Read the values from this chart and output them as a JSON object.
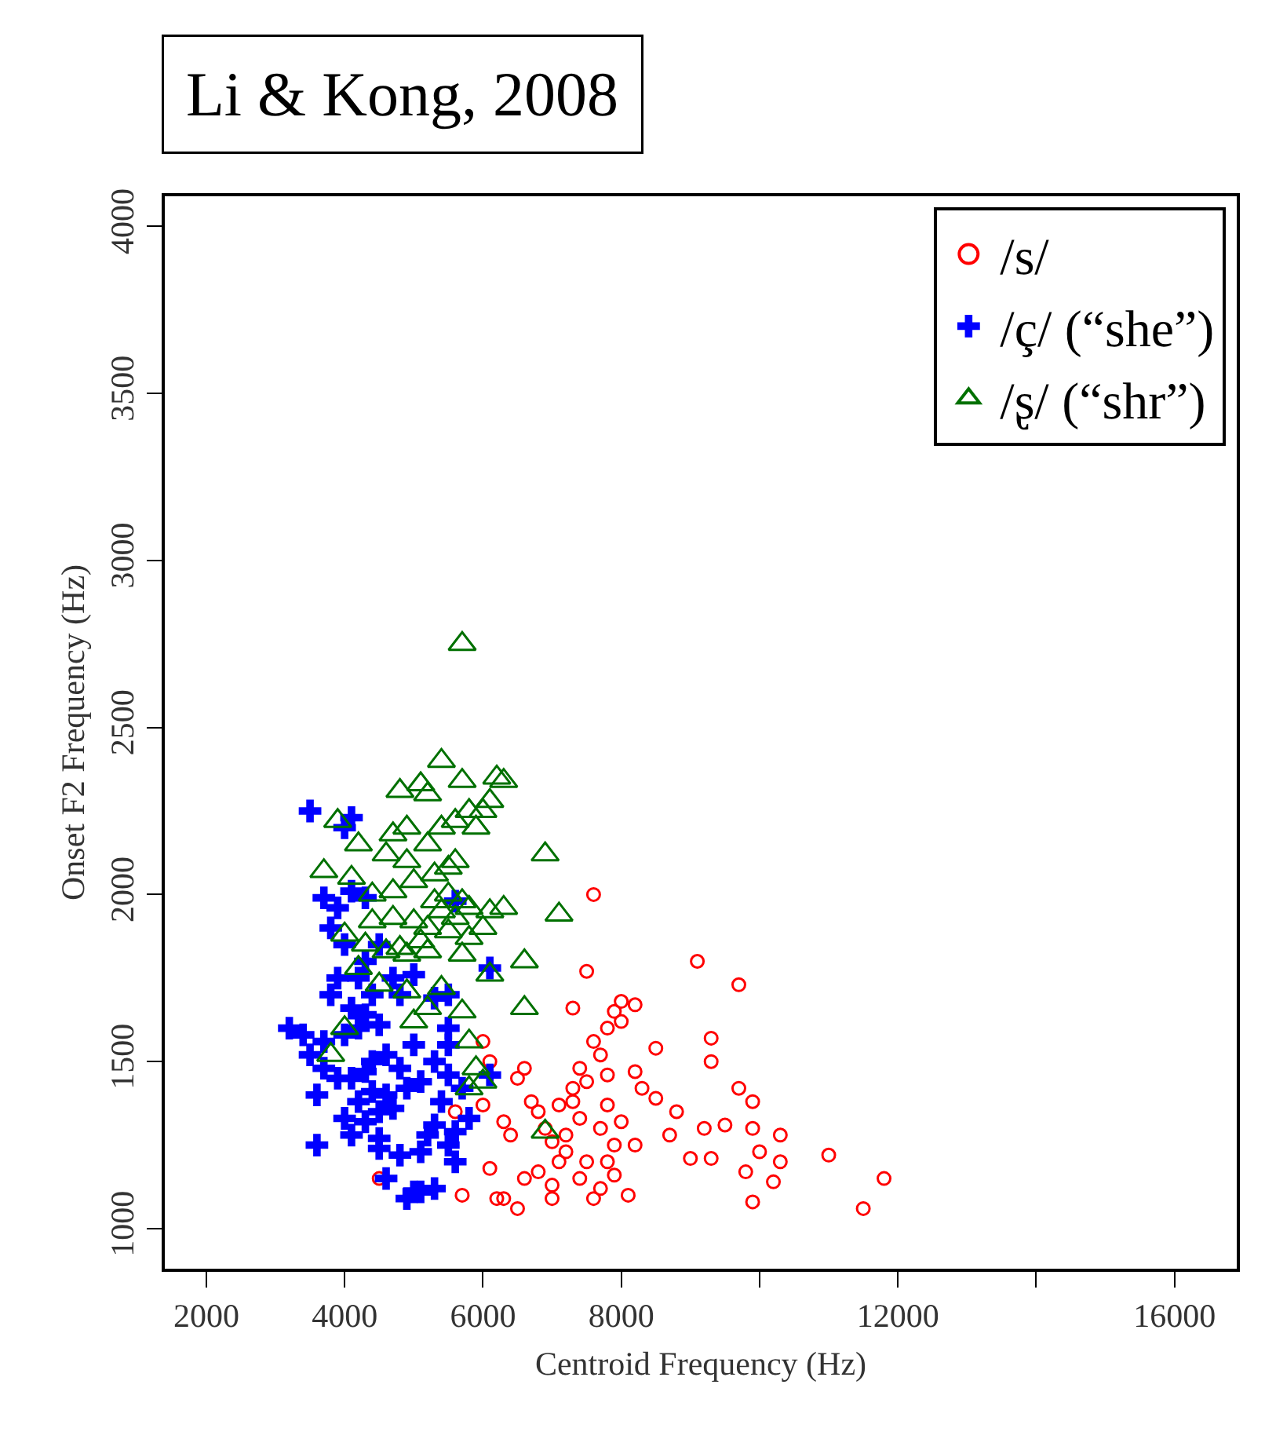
{
  "chart_data": {
    "type": "scatter",
    "title": "Li & Kong, 2008",
    "xlabel": "Centroid Frequency (Hz)",
    "ylabel": "Onset F2 Frequency (Hz)",
    "xlim": [
      1400,
      16900
    ],
    "ylim": [
      880,
      4090
    ],
    "xticks": [
      2000,
      4000,
      6000,
      8000,
      {
        "value": 10000,
        "label": null
      },
      12000,
      {
        "value": 14000,
        "label": null
      },
      16000
    ],
    "yticks": [
      1000,
      1500,
      2000,
      2500,
      3000,
      3500,
      4000
    ],
    "grid": false,
    "legend": "top right",
    "series": [
      {
        "name": "/s/",
        "color": "#ff0000",
        "marker": "circle",
        "x": [
          7600,
          9100,
          9700,
          7500,
          6000,
          6100,
          6500,
          6600,
          8000,
          8200,
          7900,
          7800,
          8000,
          7600,
          7300,
          7700,
          8500,
          9300,
          9300,
          9700,
          8300,
          8200,
          7800,
          7500,
          7300,
          7800,
          7400,
          7100,
          6800,
          6700,
          6900,
          6300,
          6400,
          6000,
          8700,
          8800,
          8500,
          9200,
          9500,
          9900,
          9900,
          10300,
          10000,
          10300,
          10200,
          9800,
          9900,
          11000,
          11800,
          11500,
          9300,
          9000,
          8200,
          8100,
          7700,
          7500,
          7200,
          7000,
          7100,
          7000,
          6800,
          6600,
          6500,
          6200,
          6300,
          6100,
          5600,
          4500,
          5700,
          7600,
          7000,
          7900,
          7800,
          7400,
          7900,
          7700,
          7300,
          7200,
          8000,
          7400
        ],
        "values": [
          2000,
          1800,
          1730,
          1770,
          1560,
          1500,
          1450,
          1480,
          1680,
          1670,
          1650,
          1600,
          1620,
          1560,
          1660,
          1520,
          1540,
          1570,
          1500,
          1420,
          1420,
          1470,
          1460,
          1440,
          1420,
          1370,
          1330,
          1370,
          1350,
          1380,
          1300,
          1320,
          1280,
          1370,
          1280,
          1350,
          1390,
          1300,
          1310,
          1380,
          1300,
          1280,
          1230,
          1200,
          1140,
          1170,
          1080,
          1220,
          1150,
          1060,
          1210,
          1210,
          1250,
          1100,
          1120,
          1200,
          1230,
          1260,
          1200,
          1130,
          1170,
          1150,
          1060,
          1090,
          1090,
          1180,
          1350,
          1150,
          1100,
          1090,
          1090,
          1250,
          1200,
          1150,
          1160,
          1300,
          1380,
          1280,
          1320,
          1480
        ]
      },
      {
        "name": "/ç/ (“she”)",
        "color": "#0000ff",
        "marker": "cross",
        "x": [
          3500,
          4100,
          4000,
          3700,
          3900,
          4100,
          4300,
          3800,
          4000,
          4500,
          4300,
          3900,
          4200,
          4800,
          5300,
          5500,
          6100,
          3800,
          4100,
          4300,
          4500,
          4000,
          3200,
          3400,
          3700,
          3500,
          3700,
          3900,
          4100,
          4300,
          4400,
          4600,
          4800,
          5000,
          5300,
          5500,
          5700,
          5400,
          5100,
          4900,
          4600,
          4400,
          4200,
          4500,
          4700,
          4300,
          4000,
          3600,
          4100,
          4500,
          3600,
          4800,
          4500,
          5300,
          5600,
          5500,
          5800,
          5200,
          5100,
          4600,
          5000,
          4900,
          5100,
          5300,
          5600,
          4200,
          4400,
          5500,
          5000,
          4700,
          5600,
          6100,
          5500
        ],
        "values": [
          2250,
          2230,
          2200,
          1990,
          1960,
          2010,
          1990,
          1900,
          1850,
          1850,
          1800,
          1750,
          1750,
          1700,
          1690,
          1700,
          1780,
          1700,
          1660,
          1640,
          1610,
          1580,
          1600,
          1580,
          1560,
          1520,
          1480,
          1450,
          1450,
          1470,
          1500,
          1520,
          1480,
          1550,
          1500,
          1460,
          1420,
          1380,
          1440,
          1420,
          1400,
          1410,
          1380,
          1350,
          1360,
          1320,
          1330,
          1400,
          1280,
          1270,
          1250,
          1220,
          1240,
          1310,
          1290,
          1250,
          1330,
          1280,
          1230,
          1150,
          1110,
          1090,
          1110,
          1120,
          1200,
          1600,
          1700,
          1600,
          1760,
          1750,
          1980,
          1460,
          1550
        ]
      },
      {
        "name": "/ʂ/ (“shr”)",
        "color": "#007000",
        "marker": "triangle",
        "x": [
          5700,
          5400,
          5100,
          5700,
          5200,
          4800,
          5600,
          5800,
          6200,
          6300,
          6100,
          5900,
          5400,
          4700,
          4900,
          3900,
          4200,
          4600,
          4900,
          5200,
          5600,
          6000,
          6900,
          3700,
          4100,
          4400,
          4700,
          5000,
          5300,
          5500,
          5300,
          5500,
          5700,
          5400,
          5600,
          5800,
          6100,
          6300,
          7100,
          4400,
          4700,
          5000,
          5200,
          5500,
          5800,
          6000,
          4000,
          4300,
          4600,
          4900,
          5200,
          5700,
          6600,
          6100,
          4200,
          4500,
          4900,
          5400,
          5200,
          5700,
          6600,
          4000,
          3800,
          5800,
          5900,
          5800,
          6000,
          5000,
          6900,
          4800,
          5100
        ],
        "values": [
          2750,
          2400,
          2330,
          2340,
          2300,
          2310,
          2220,
          2250,
          2350,
          2340,
          2280,
          2200,
          2200,
          2180,
          2200,
          2220,
          2150,
          2120,
          2100,
          2150,
          2100,
          2250,
          2120,
          2070,
          2050,
          2000,
          2010,
          2040,
          2060,
          2080,
          1980,
          2000,
          1980,
          1950,
          1930,
          1960,
          1950,
          1960,
          1940,
          1920,
          1930,
          1920,
          1900,
          1890,
          1870,
          1900,
          1880,
          1850,
          1830,
          1820,
          1830,
          1820,
          1800,
          1760,
          1780,
          1730,
          1710,
          1720,
          1660,
          1650,
          1660,
          1600,
          1520,
          1560,
          1480,
          1420,
          1440,
          1620,
          1290,
          1840,
          1860
        ]
      }
    ]
  }
}
